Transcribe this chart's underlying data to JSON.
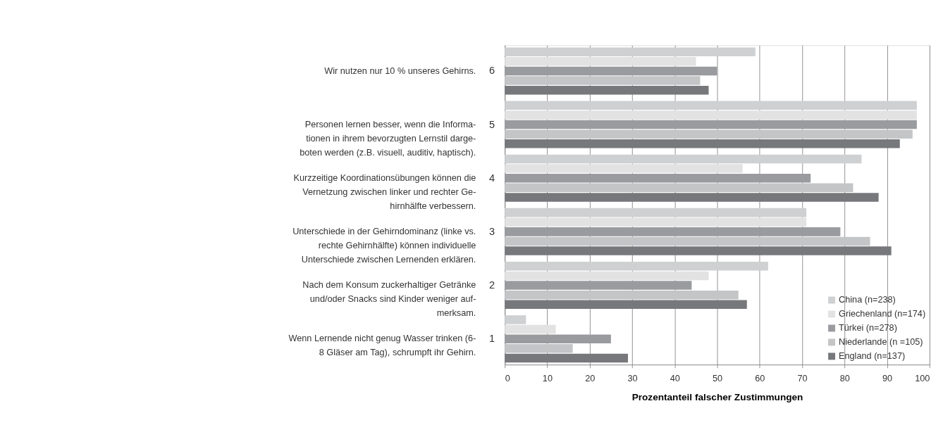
{
  "chart_data": {
    "type": "bar",
    "orientation": "horizontal",
    "xlabel": "Prozentanteil falscher Zustimmungen",
    "categories": [
      "6",
      "5",
      "4",
      "3",
      "2",
      "1"
    ],
    "annotations": [
      "Wir nutzen nur 10 % unseres Gehirns.",
      "Personen lernen besser, wenn die Informa-\ntionen in ihrem bevorzugten Lernstil darge-\nboten werden (z.B. visuell, auditiv, haptisch).",
      "Kurzzeitige Koordinationsübungen können die\nVernetzung zwischen linker und rechter Ge-\nhirnhälfte verbessern.",
      "Unterschiede in der Gehirndominanz (linke vs.\nrechte Gehirnhälfte) können individuelle\nUnterschiede zwischen Lernenden erklären.",
      "Nach dem Konsum zuckerhaltiger Getränke\nund/oder Snacks sind Kinder weniger auf-\nmerksam.",
      "Wenn Lernende nicht genug Wasser trinken (6-\n8 Gläser am Tag), schrumpft ihr Gehirn."
    ],
    "series": [
      {
        "name": "China (n=238)",
        "color": "#cfd0d2",
        "values": [
          59,
          97,
          84,
          71,
          62,
          5
        ]
      },
      {
        "name": "Griechenland (n=174)",
        "color": "#e2e2e3",
        "values": [
          45,
          97,
          56,
          71,
          48,
          12
        ]
      },
      {
        "name": "Türkei (n=278)",
        "color": "#9a9b9e",
        "values": [
          50,
          97,
          72,
          79,
          44,
          25
        ]
      },
      {
        "name": "Niederlande (n =105)",
        "color": "#c4c5c7",
        "values": [
          46,
          96,
          82,
          86,
          55,
          16
        ]
      },
      {
        "name": "England (n=137)",
        "color": "#77787b",
        "values": [
          48,
          93,
          88,
          91,
          57,
          29
        ]
      }
    ],
    "xlim": [
      0,
      100
    ],
    "xticks": [
      0,
      10,
      20,
      30,
      40,
      50,
      60,
      70,
      80,
      90,
      100
    ],
    "grid": "x",
    "legend": "bottom right"
  }
}
